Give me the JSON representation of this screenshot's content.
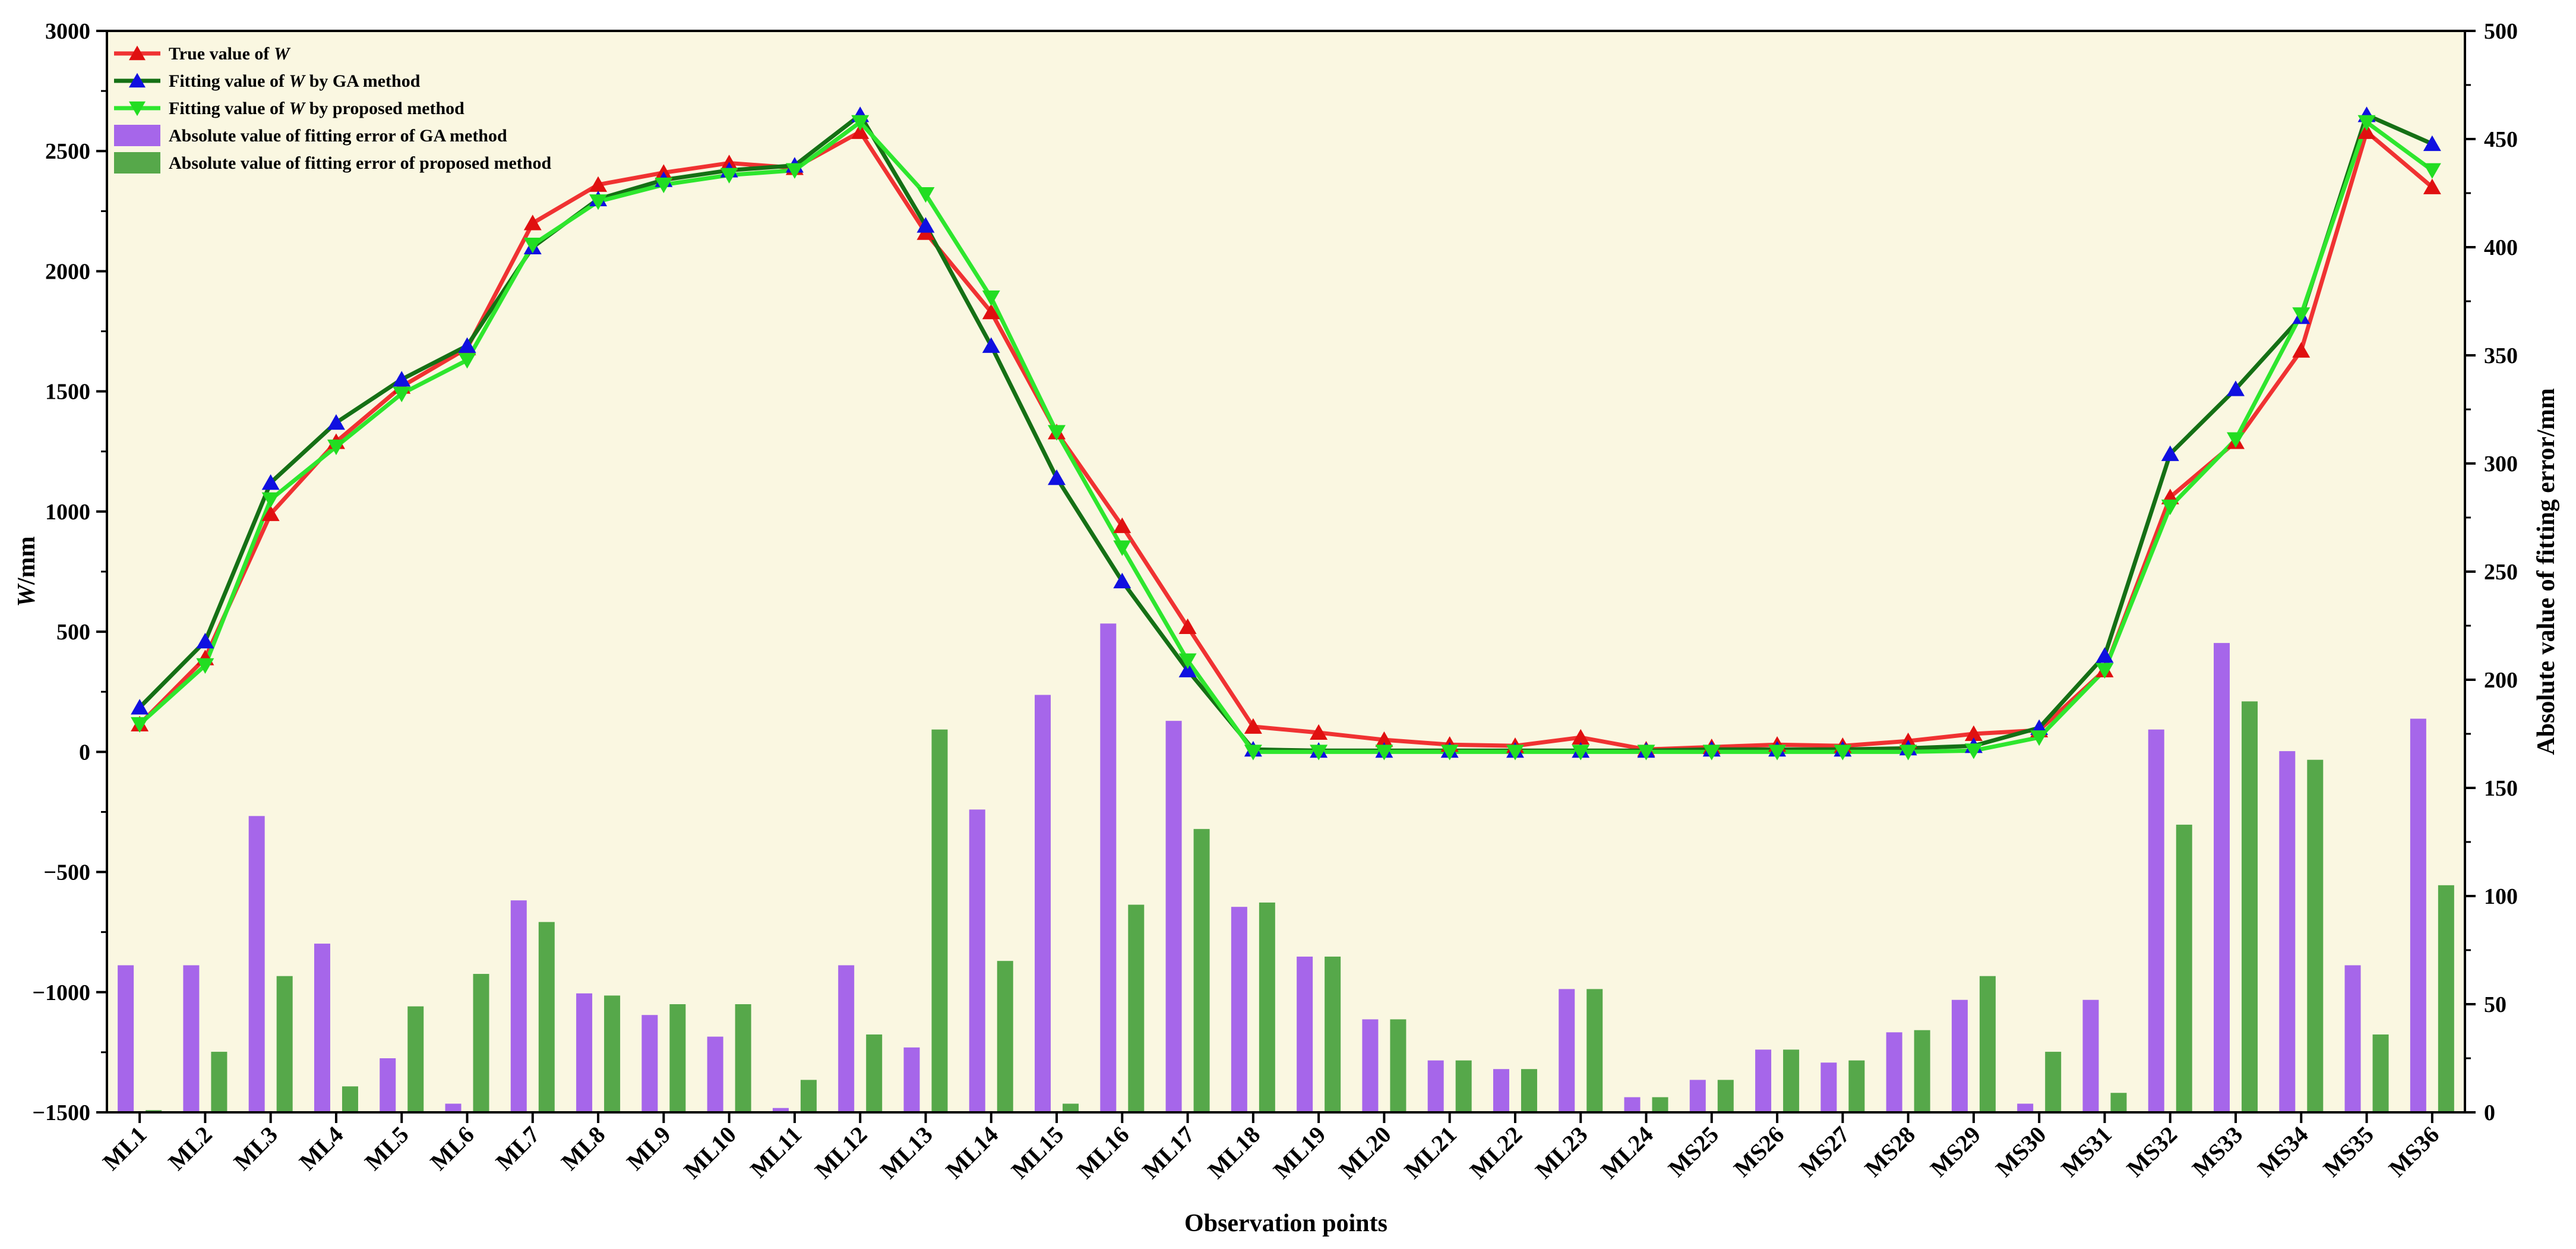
{
  "chart_data": {
    "type": "bar+line",
    "categories": [
      "ML1",
      "ML2",
      "ML3",
      "ML4",
      "ML5",
      "ML6",
      "ML7",
      "ML8",
      "ML9",
      "ML10",
      "ML11",
      "ML12",
      "ML13",
      "ML14",
      "ML15",
      "ML16",
      "ML17",
      "ML18",
      "ML19",
      "ML20",
      "ML21",
      "ML22",
      "ML23",
      "ML24",
      "MS25",
      "MS26",
      "MS27",
      "MS28",
      "MS29",
      "MS30",
      "MS31",
      "MS32",
      "MS33",
      "MS34",
      "MS35",
      "MS36"
    ],
    "xlabel": "Observation points",
    "ylabel_left": "W/mm",
    "ylabel_left_italic": "W",
    "ylabel_left_unit": "/mm",
    "ylabel_right": "Absolute value of fitting error/mm",
    "ylim_left": [
      -1500,
      3000
    ],
    "yticks_left": [
      -1500,
      -1000,
      -500,
      0,
      500,
      1000,
      1500,
      2000,
      2500,
      3000
    ],
    "ylim_right": [
      0,
      500
    ],
    "yticks_right": [
      0,
      50,
      100,
      150,
      200,
      250,
      300,
      350,
      400,
      450,
      500
    ],
    "plot_background": "#FAF7E1",
    "grid": false,
    "legend_position": "top-left",
    "lines": [
      {
        "name": "True value of W",
        "name_prefix": "True value of ",
        "name_italic": "W",
        "name_suffix": "",
        "color": "#F03232",
        "marker": "triangle-up",
        "marker_color": "#E01010",
        "values": [
          115,
          390,
          990,
          1290,
          1520,
          1680,
          2200,
          2360,
          2410,
          2450,
          2430,
          2580,
          2160,
          1830,
          1330,
          940,
          520,
          105,
          80,
          50,
          30,
          25,
          60,
          10,
          20,
          30,
          25,
          45,
          75,
          90,
          340,
          1060,
          1290,
          1670,
          2580,
          2350
        ]
      },
      {
        "name": "Fitting value of W by GA method",
        "name_prefix": "Fitting value of ",
        "name_italic": "W",
        "name_suffix": " by GA method",
        "color": "#157015",
        "marker": "triangle-up",
        "marker_color": "#1010E0",
        "values": [
          185,
          460,
          1120,
          1370,
          1550,
          1690,
          2100,
          2300,
          2380,
          2420,
          2440,
          2650,
          2190,
          1690,
          1140,
          710,
          340,
          10,
          5,
          5,
          5,
          5,
          5,
          5,
          10,
          10,
          10,
          15,
          25,
          100,
          400,
          1240,
          1510,
          1810,
          2650,
          2530
        ]
      },
      {
        "name": "Fitting value of W by proposed method",
        "name_prefix": "Fitting value of ",
        "name_italic": "W",
        "name_suffix": " by proposed method",
        "color": "#2EE62E",
        "marker": "triangle-down",
        "marker_color": "#22DD22",
        "values": [
          115,
          360,
          1050,
          1270,
          1490,
          1630,
          2110,
          2290,
          2360,
          2400,
          2420,
          2620,
          2320,
          1890,
          1330,
          850,
          380,
          0,
          0,
          0,
          0,
          0,
          0,
          0,
          0,
          0,
          0,
          0,
          5,
          60,
          340,
          1020,
          1300,
          1820,
          2620,
          2420
        ]
      }
    ],
    "bars": [
      {
        "name": "Absolute value of fitting error of GA method",
        "color": "#A666EA",
        "values": [
          68,
          68,
          137,
          78,
          25,
          4,
          98,
          55,
          45,
          35,
          2,
          68,
          30,
          140,
          193,
          226,
          181,
          95,
          72,
          43,
          24,
          20,
          57,
          7,
          15,
          29,
          23,
          37,
          52,
          4,
          52,
          177,
          217,
          167,
          68,
          182
        ]
      },
      {
        "name": "Absolute value of fitting error of proposed method",
        "color": "#56A84A",
        "values": [
          1,
          28,
          63,
          12,
          49,
          64,
          88,
          54,
          50,
          50,
          15,
          36,
          177,
          70,
          4,
          96,
          131,
          97,
          72,
          43,
          24,
          20,
          57,
          7,
          15,
          29,
          24,
          38,
          63,
          28,
          9,
          133,
          190,
          163,
          36,
          105
        ]
      }
    ]
  }
}
